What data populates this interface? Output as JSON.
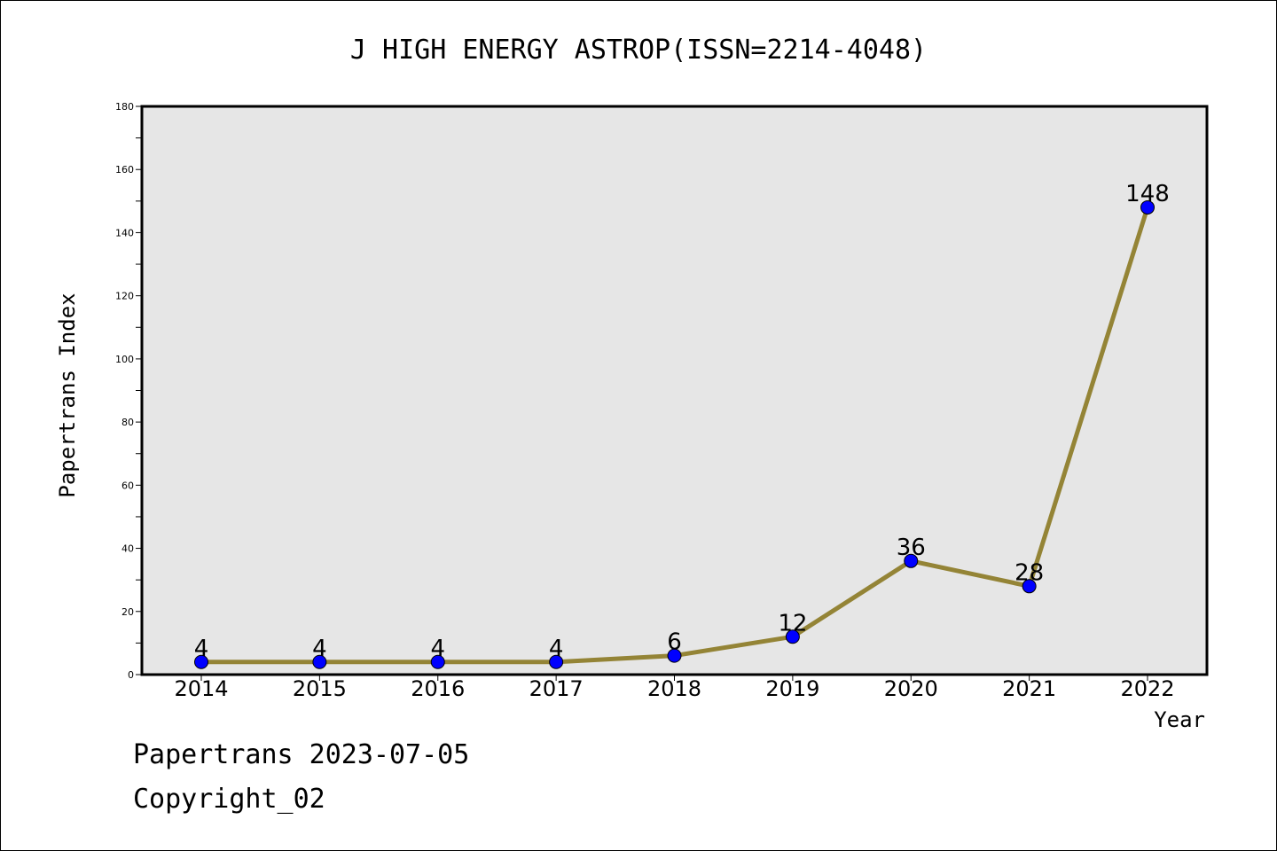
{
  "chart_data": {
    "type": "line",
    "title": "J HIGH ENERGY ASTROP(ISSN=2214-4048)",
    "xlabel": "Year",
    "ylabel": "Papertrans Index",
    "categories": [
      "2014",
      "2015",
      "2016",
      "2017",
      "2018",
      "2019",
      "2020",
      "2021",
      "2022"
    ],
    "values": [
      4,
      4,
      4,
      4,
      6,
      12,
      36,
      28,
      148
    ],
    "data_labels": [
      "4",
      "4",
      "4",
      "4",
      "6",
      "12",
      "36",
      "28",
      "148"
    ],
    "ylim": [
      0,
      180
    ],
    "yticks": [
      0,
      20,
      40,
      60,
      80,
      100,
      120,
      140,
      160,
      180
    ],
    "yminor_step": 10,
    "grid": false,
    "legend": "none",
    "colors": {
      "line": "#948436",
      "marker_fill": "#0000ff",
      "marker_edge": "#000000",
      "plot_background": "#e6e6e6",
      "axes_edge": "#000000"
    }
  },
  "footer": {
    "line1": "Papertrans 2023-07-05",
    "line2": "Copyright_02"
  }
}
